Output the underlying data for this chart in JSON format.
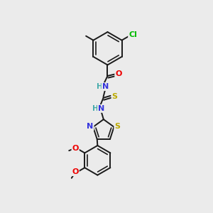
{
  "bg_color": "#ebebeb",
  "bond_color": "#1a1a1a",
  "bond_width": 1.4,
  "atom_colors": {
    "Cl": "#00bb00",
    "O": "#ee0000",
    "N": "#3333dd",
    "S": "#bbaa00",
    "HN_color": "#44aaaa"
  },
  "fs": 7.5,
  "fs_cl": 8.0
}
